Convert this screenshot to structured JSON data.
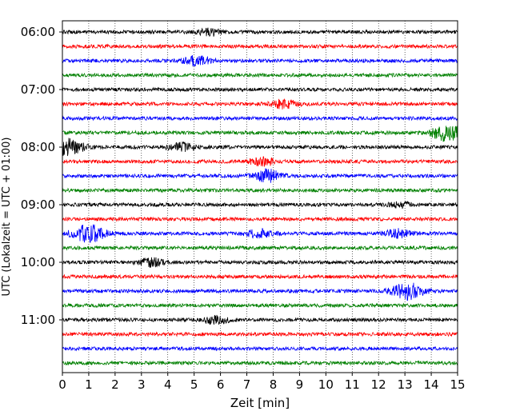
{
  "chart_data": {
    "type": "line",
    "title": "",
    "xlabel": "Zeit  [min]",
    "ylabel": "UTC (Lokalzeit = UTC + 01:00)",
    "xlim": [
      0,
      15
    ],
    "x_ticks": [
      "0",
      "1",
      "2",
      "3",
      "4",
      "5",
      "6",
      "7",
      "8",
      "9",
      "10",
      "11",
      "12",
      "13",
      "14",
      "15"
    ],
    "y_tick_labels": [
      "06:00",
      "07:00",
      "08:00",
      "09:00",
      "10:00",
      "11:00"
    ],
    "grid": "vertical-dotted",
    "colors": [
      "#000000",
      "#ff0000",
      "#0000ff",
      "#008000"
    ],
    "traces": [
      {
        "start": "06:00",
        "color": "#000000",
        "events": [
          {
            "t": 5.6,
            "amp": 0.25
          }
        ]
      },
      {
        "start": "06:15",
        "color": "#ff0000",
        "events": []
      },
      {
        "start": "06:30",
        "color": "#0000ff",
        "events": [
          {
            "t": 5.1,
            "amp": 0.35
          }
        ]
      },
      {
        "start": "06:45",
        "color": "#008000",
        "events": []
      },
      {
        "start": "07:00",
        "color": "#000000",
        "events": []
      },
      {
        "start": "07:15",
        "color": "#ff0000",
        "events": [
          {
            "t": 8.4,
            "amp": 0.3
          }
        ]
      },
      {
        "start": "07:30",
        "color": "#0000ff",
        "events": []
      },
      {
        "start": "07:45",
        "color": "#008000",
        "events": [
          {
            "t": 14.6,
            "amp": 0.6
          }
        ]
      },
      {
        "start": "08:00",
        "color": "#000000",
        "events": [
          {
            "t": 0.2,
            "amp": 0.6
          },
          {
            "t": 4.5,
            "amp": 0.3
          }
        ]
      },
      {
        "start": "08:15",
        "color": "#ff0000",
        "events": [
          {
            "t": 7.6,
            "amp": 0.3
          }
        ]
      },
      {
        "start": "08:30",
        "color": "#0000ff",
        "events": [
          {
            "t": 7.8,
            "amp": 0.45
          }
        ]
      },
      {
        "start": "08:45",
        "color": "#008000",
        "events": []
      },
      {
        "start": "09:00",
        "color": "#000000",
        "events": [
          {
            "t": 12.8,
            "amp": 0.2
          }
        ]
      },
      {
        "start": "09:15",
        "color": "#ff0000",
        "events": []
      },
      {
        "start": "09:30",
        "color": "#0000ff",
        "events": [
          {
            "t": 1.0,
            "amp": 0.65
          },
          {
            "t": 7.5,
            "amp": 0.3
          },
          {
            "t": 12.7,
            "amp": 0.3
          }
        ]
      },
      {
        "start": "09:45",
        "color": "#008000",
        "events": []
      },
      {
        "start": "10:00",
        "color": "#000000",
        "events": [
          {
            "t": 3.4,
            "amp": 0.3
          }
        ]
      },
      {
        "start": "10:15",
        "color": "#ff0000",
        "events": []
      },
      {
        "start": "10:30",
        "color": "#0000ff",
        "events": [
          {
            "t": 13.1,
            "amp": 0.6
          }
        ]
      },
      {
        "start": "10:45",
        "color": "#008000",
        "events": []
      },
      {
        "start": "11:00",
        "color": "#000000",
        "events": [
          {
            "t": 5.8,
            "amp": 0.3
          }
        ]
      },
      {
        "start": "11:15",
        "color": "#ff0000",
        "events": []
      },
      {
        "start": "11:30",
        "color": "#0000ff",
        "events": []
      },
      {
        "start": "11:45",
        "color": "#008000",
        "events": []
      }
    ]
  }
}
